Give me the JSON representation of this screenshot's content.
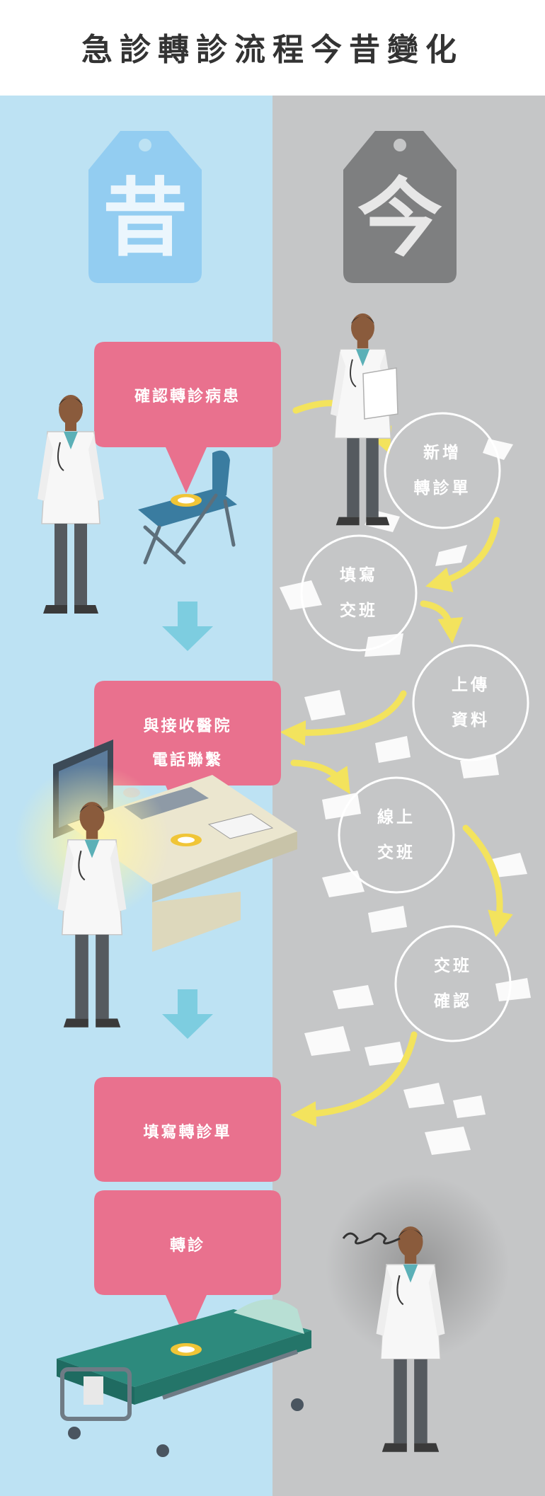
{
  "title": "急診轉診流程今昔變化",
  "past": {
    "tag": "昔",
    "steps": [
      "確認轉診病患",
      "與接收醫院\n電話聯繫",
      "填寫轉診單",
      "轉診"
    ]
  },
  "present": {
    "tag": "今",
    "steps": [
      "新增\n轉診單",
      "填寫\n交班",
      "上傳\n資料",
      "線上\n交班",
      "交班\n確認"
    ]
  },
  "colors": {
    "left_bg": "#bde2f3",
    "right_bg": "#c5c6c7",
    "pink": "#e9718e",
    "past_tag": "#93cdf1",
    "present_tag": "#7e7f80",
    "arrow_yellow": "#f3e35d",
    "down_arrow": "#7dcde0"
  },
  "icons": [
    "doctor-icon",
    "folding-chair-icon",
    "computer-desk-icon",
    "hospital-bed-icon",
    "location-pin-icon",
    "paper-sheet-icon",
    "stressed-doctor-icon"
  ]
}
